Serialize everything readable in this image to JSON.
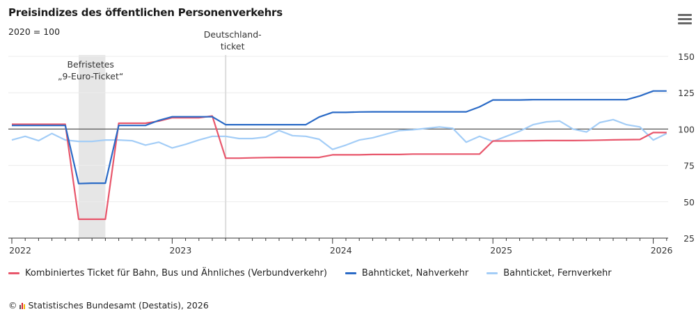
{
  "header": {
    "title": "Preisindizes des öffentlichen Personenverkehrs",
    "subtitle": "2020 = 100",
    "menu_icon": "hamburger-menu-icon"
  },
  "credits": {
    "copyright_symbol": "©",
    "logo_icon": "destatis-logo-icon",
    "text": "Statistisches Bundesamt (Destatis), 2026"
  },
  "chart_data": {
    "type": "line",
    "title": "Preisindizes des öffentlichen Personenverkehrs",
    "subtitle": "2020 = 100",
    "xlabel": "",
    "ylabel": "",
    "ylim": [
      25,
      150
    ],
    "y_ticks": [
      25,
      50,
      75,
      100,
      125,
      150
    ],
    "y_axis_position": "right",
    "x_ticks": [
      "2022",
      "2023",
      "2024",
      "2025",
      "2026"
    ],
    "x_start": "2022-01",
    "x_end": "2026-02",
    "grid": true,
    "reference_line": 100,
    "legend_position": "bottom-left",
    "annotations": [
      {
        "type": "band",
        "from": "2022-06",
        "to": "2022-08",
        "label_lines": [
          "Befristetes",
          "„9-Euro-Ticket“"
        ]
      },
      {
        "type": "line",
        "at": "2023-05",
        "label_lines": [
          "Deutschland-",
          "ticket"
        ]
      }
    ],
    "x": [
      "2022-01",
      "2022-02",
      "2022-03",
      "2022-04",
      "2022-05",
      "2022-06",
      "2022-07",
      "2022-08",
      "2022-09",
      "2022-10",
      "2022-11",
      "2022-12",
      "2023-01",
      "2023-02",
      "2023-03",
      "2023-04",
      "2023-05",
      "2023-06",
      "2023-07",
      "2023-08",
      "2023-09",
      "2023-10",
      "2023-11",
      "2023-12",
      "2024-01",
      "2024-02",
      "2024-03",
      "2024-04",
      "2024-05",
      "2024-06",
      "2024-07",
      "2024-08",
      "2024-09",
      "2024-10",
      "2024-11",
      "2024-12",
      "2025-01",
      "2025-02",
      "2025-03",
      "2025-04",
      "2025-05",
      "2025-06",
      "2025-07",
      "2025-08",
      "2025-09",
      "2025-10",
      "2025-11",
      "2025-12",
      "2026-01",
      "2026-02"
    ],
    "series": [
      {
        "name": "Kombiniertes Ticket für Bahn, Bus und Ähnliches (Verbundverkehr)",
        "color": "#e8566b",
        "values": [
          103.3,
          103.3,
          103.3,
          103.3,
          103.3,
          38,
          38,
          38,
          104,
          104,
          104,
          105.5,
          107.8,
          107.8,
          107.8,
          109,
          80,
          80,
          80.2,
          80.4,
          80.5,
          80.5,
          80.5,
          80.5,
          82.3,
          82.3,
          82.3,
          82.5,
          82.5,
          82.5,
          82.8,
          82.8,
          82.8,
          82.8,
          82.8,
          82.8,
          91.8,
          91.8,
          91.9,
          92,
          92.1,
          92.1,
          92.1,
          92.2,
          92.4,
          92.6,
          92.7,
          92.8,
          97.6,
          97.6
        ]
      },
      {
        "name": "Bahnticket, Nahverkehr",
        "color": "#2a6ac6",
        "values": [
          102.5,
          102.5,
          102.5,
          102.5,
          102.5,
          62.5,
          62.8,
          62.8,
          102.5,
          102.5,
          102.5,
          106,
          108.5,
          108.5,
          108.5,
          108.5,
          103,
          103,
          103,
          103,
          103,
          103,
          103,
          108.3,
          111.5,
          111.5,
          111.8,
          111.9,
          111.9,
          111.9,
          111.9,
          111.9,
          111.9,
          111.9,
          111.9,
          115.3,
          120,
          120,
          120,
          120.2,
          120.2,
          120.2,
          120.2,
          120.2,
          120.2,
          120.2,
          120.2,
          122.8,
          126.2,
          126.2
        ]
      },
      {
        "name": "Bahnticket, Fernverkehr",
        "color": "#a3cdf7",
        "values": [
          92.5,
          95,
          92,
          97,
          92.5,
          91.5,
          91.5,
          92.5,
          92.5,
          92,
          89,
          91,
          87,
          89.5,
          92.5,
          95,
          95,
          93.5,
          93.5,
          94.5,
          99,
          95.5,
          95,
          93,
          86,
          89,
          92.5,
          94,
          96.5,
          99,
          99.5,
          100.5,
          101.5,
          100.5,
          91,
          95,
          91.5,
          95,
          98.5,
          103,
          105,
          105.5,
          100,
          98,
          104.5,
          106.5,
          103,
          101.5,
          92.5,
          97
        ]
      }
    ]
  }
}
